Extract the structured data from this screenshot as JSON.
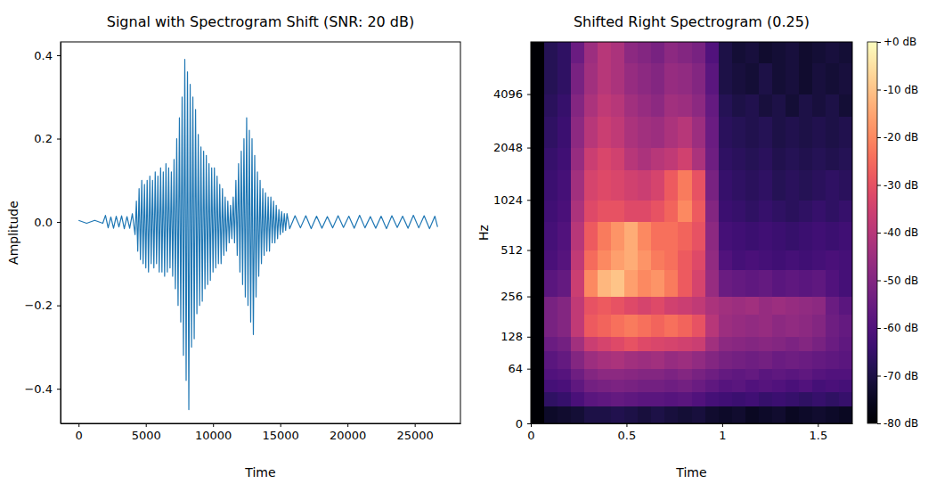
{
  "chart_data": [
    {
      "type": "line",
      "title": "Signal with Spectrogram Shift (SNR: 20 dB)",
      "x_label": "Time",
      "y_label": "Amplitude",
      "color": "#1f77b4",
      "xlim": [
        -1340,
        28400
      ],
      "ylim": [
        -0.483,
        0.432
      ],
      "xticks": [
        0,
        5000,
        10000,
        15000,
        20000,
        25000
      ],
      "yticks": [
        {
          "value": -0.4,
          "label": "−0.4"
        },
        {
          "value": -0.2,
          "label": "−0.2"
        },
        {
          "value": 0,
          "label": "0.0"
        },
        0.2,
        0.4
      ],
      "x": [
        0,
        600,
        1200,
        1800,
        2000,
        2200,
        2400,
        2600,
        2800,
        3000,
        3200,
        3400,
        3600,
        3800,
        4000,
        4200,
        4300,
        4400,
        4500,
        4600,
        4700,
        4800,
        4900,
        5000,
        5100,
        5200,
        5300,
        5400,
        5500,
        5600,
        5700,
        5800,
        5900,
        6000,
        6100,
        6200,
        6300,
        6400,
        6500,
        6600,
        6700,
        6800,
        6900,
        7000,
        7100,
        7200,
        7300,
        7400,
        7500,
        7600,
        7700,
        7800,
        7900,
        8000,
        8100,
        8200,
        8300,
        8400,
        8500,
        8600,
        8700,
        8800,
        8900,
        9000,
        9100,
        9200,
        9300,
        9400,
        9500,
        9600,
        9700,
        9800,
        9900,
        10000,
        10100,
        10200,
        10300,
        10400,
        10500,
        10600,
        10700,
        10800,
        10900,
        11000,
        11100,
        11200,
        11300,
        11400,
        11500,
        11600,
        11700,
        11800,
        11900,
        12000,
        12100,
        12200,
        12300,
        12400,
        12500,
        12600,
        12700,
        12800,
        12900,
        13000,
        13100,
        13200,
        13300,
        13400,
        13500,
        13600,
        13700,
        13800,
        13900,
        14000,
        14100,
        14200,
        14300,
        14400,
        14500,
        14600,
        14700,
        14800,
        14900,
        15000,
        15100,
        15200,
        15300,
        15400,
        15500,
        15700,
        16100,
        16500,
        16900,
        17300,
        17700,
        18100,
        18500,
        18900,
        19300,
        19700,
        20100,
        20500,
        20900,
        21300,
        21700,
        22100,
        22500,
        22900,
        23300,
        23700,
        24100,
        24500,
        24900,
        25300,
        25700,
        26100,
        26500,
        26700
      ],
      "values": [
        0.004,
        -0.003,
        0.004,
        -0.003,
        0.016,
        -0.014,
        0.012,
        -0.015,
        0.014,
        -0.012,
        0.015,
        -0.016,
        0.013,
        -0.015,
        0.02,
        -0.03,
        0.05,
        -0.07,
        0.08,
        -0.09,
        0.1,
        -0.1,
        0.09,
        -0.11,
        0.1,
        -0.12,
        0.11,
        -0.1,
        0.1,
        -0.11,
        0.12,
        -0.1,
        0.11,
        -0.12,
        0.13,
        -0.12,
        0.12,
        -0.13,
        0.14,
        -0.12,
        0.13,
        -0.11,
        0.12,
        -0.13,
        0.15,
        -0.16,
        0.2,
        -0.2,
        0.25,
        -0.24,
        0.3,
        -0.32,
        0.39,
        -0.38,
        0.36,
        -0.45,
        0.33,
        -0.3,
        0.3,
        -0.28,
        0.27,
        -0.22,
        0.21,
        -0.2,
        0.18,
        -0.19,
        0.17,
        -0.16,
        0.16,
        -0.15,
        0.14,
        -0.14,
        0.13,
        -0.12,
        0.13,
        -0.11,
        0.11,
        -0.1,
        0.09,
        -0.1,
        0.08,
        -0.08,
        0.06,
        -0.07,
        0.05,
        -0.05,
        0.04,
        -0.04,
        0.06,
        -0.05,
        0.1,
        -0.08,
        0.14,
        -0.12,
        0.17,
        -0.15,
        0.2,
        -0.18,
        0.25,
        -0.2,
        0.22,
        -0.24,
        0.2,
        -0.27,
        0.16,
        -0.18,
        0.12,
        -0.13,
        0.1,
        -0.1,
        0.08,
        -0.08,
        0.07,
        -0.07,
        0.06,
        -0.07,
        0.06,
        -0.05,
        0.05,
        -0.05,
        0.04,
        -0.04,
        0.03,
        -0.03,
        0.025,
        -0.025,
        0.02,
        -0.02,
        0.02,
        -0.016,
        0.015,
        -0.014,
        0.015,
        -0.016,
        0.014,
        -0.015,
        0.013,
        -0.014,
        0.015,
        -0.013,
        0.014,
        -0.015,
        0.016,
        -0.014,
        0.013,
        -0.015,
        0.014,
        -0.016,
        0.015,
        -0.013,
        0.014,
        -0.015,
        0.016,
        -0.014,
        0.015,
        -0.016,
        0.014,
        -0.012
      ]
    },
    {
      "type": "heatmap",
      "title": "Shifted Right Spectrogram (0.25)",
      "x_label": "Time",
      "y_label": "Hz",
      "log": "y",
      "color": "magma",
      "xlim": [
        0,
        1.68
      ],
      "ylim": [
        0,
        8000
      ],
      "xticks": [
        0,
        0.5,
        1,
        1.5
      ],
      "yticks": [
        0,
        64,
        128,
        256,
        512,
        1024,
        2048,
        4096
      ],
      "x_edges": [
        0,
        0.07,
        0.14,
        0.21,
        0.28,
        0.35,
        0.42,
        0.49,
        0.56,
        0.63,
        0.7,
        0.77,
        0.84,
        0.91,
        0.98,
        1.05,
        1.12,
        1.19,
        1.26,
        1.33,
        1.4,
        1.47,
        1.54,
        1.61,
        1.68
      ],
      "y_edges": [
        0,
        16,
        32,
        48,
        64,
        96,
        128,
        192,
        256,
        384,
        512,
        768,
        1024,
        1536,
        2048,
        3072,
        4096,
        6144,
        8000
      ],
      "cells": [
        [
          -80,
          -74,
          -73,
          -72,
          -70,
          -70,
          -69,
          -70,
          -71,
          -70,
          -71,
          -72,
          -71,
          -73,
          -74,
          -73,
          -75,
          -74,
          -73,
          -75,
          -74,
          -73,
          -74,
          -75
        ],
        [
          -80,
          -66,
          -65,
          -61,
          -58,
          -57,
          -56,
          -57,
          -58,
          -58,
          -59,
          -58,
          -60,
          -62,
          -63,
          -64,
          -63,
          -65,
          -64,
          -65,
          -66,
          -65,
          -66,
          -65
        ],
        [
          -80,
          -62,
          -61,
          -57,
          -53,
          -52,
          -51,
          -52,
          -53,
          -53,
          -54,
          -53,
          -55,
          -57,
          -59,
          -58,
          -60,
          -59,
          -60,
          -61,
          -60,
          -62,
          -61,
          -62
        ],
        [
          -80,
          -60,
          -59,
          -54,
          -50,
          -48,
          -48,
          -49,
          -50,
          -50,
          -51,
          -50,
          -52,
          -54,
          -56,
          -57,
          -56,
          -58,
          -57,
          -58,
          -57,
          -59,
          -60,
          -60
        ],
        [
          -80,
          -58,
          -56,
          -50,
          -45,
          -43,
          -42,
          -44,
          -45,
          -44,
          -46,
          -45,
          -47,
          -50,
          -52,
          -53,
          -54,
          -53,
          -55,
          -54,
          -55,
          -56,
          -57,
          -58
        ],
        [
          -80,
          -55,
          -53,
          -44,
          -36,
          -34,
          -32,
          -30,
          -32,
          -33,
          -34,
          -35,
          -36,
          -44,
          -48,
          -49,
          -50,
          -49,
          -50,
          -51,
          -50,
          -52,
          -55,
          -57
        ],
        [
          -80,
          -52,
          -50,
          -38,
          -28,
          -26,
          -24,
          -22,
          -24,
          -26,
          -24,
          -26,
          -30,
          -40,
          -45,
          -46,
          -47,
          -46,
          -48,
          -47,
          -48,
          -50,
          -54,
          -56
        ],
        [
          -80,
          -52,
          -50,
          -38,
          -30,
          -28,
          -30,
          -32,
          -34,
          -32,
          -35,
          -36,
          -38,
          -42,
          -44,
          -45,
          -44,
          -46,
          -45,
          -46,
          -47,
          -48,
          -55,
          -58
        ],
        [
          -80,
          -58,
          -56,
          -36,
          -20,
          -12,
          -10,
          -16,
          -20,
          -18,
          -22,
          -28,
          -34,
          -46,
          -55,
          -56,
          -57,
          -56,
          -58,
          -57,
          -58,
          -57,
          -60,
          -62
        ],
        [
          -80,
          -61,
          -59,
          -38,
          -25,
          -20,
          -16,
          -14,
          -18,
          -22,
          -24,
          -28,
          -32,
          -47,
          -60,
          -62,
          -61,
          -62,
          -63,
          -62,
          -63,
          -62,
          -61,
          -62
        ],
        [
          -80,
          -62,
          -60,
          -40,
          -28,
          -22,
          -18,
          -14,
          -20,
          -24,
          -24,
          -26,
          -30,
          -48,
          -62,
          -63,
          -64,
          -63,
          -64,
          -65,
          -64,
          -63,
          -64,
          -63
        ],
        [
          -80,
          -63,
          -61,
          -42,
          -32,
          -30,
          -30,
          -32,
          -32,
          -30,
          -26,
          -20,
          -28,
          -50,
          -64,
          -65,
          -66,
          -65,
          -66,
          -67,
          -66,
          -65,
          -66,
          -65
        ],
        [
          -80,
          -64,
          -62,
          -44,
          -34,
          -32,
          -33,
          -35,
          -36,
          -34,
          -28,
          -22,
          -30,
          -52,
          -65,
          -66,
          -67,
          -66,
          -68,
          -67,
          -68,
          -67,
          -66,
          -67
        ],
        [
          -80,
          -65,
          -63,
          -46,
          -36,
          -33,
          -35,
          -40,
          -42,
          -40,
          -38,
          -35,
          -42,
          -54,
          -66,
          -67,
          -68,
          -67,
          -69,
          -68,
          -69,
          -68,
          -69,
          -68
        ],
        [
          -80,
          -66,
          -64,
          -48,
          -40,
          -36,
          -38,
          -42,
          -44,
          -45,
          -42,
          -40,
          -45,
          -55,
          -67,
          -68,
          -69,
          -68,
          -70,
          -69,
          -70,
          -69,
          -70,
          -69
        ],
        [
          -80,
          -67,
          -65,
          -50,
          -42,
          -38,
          -40,
          -44,
          -46,
          -48,
          -44,
          -45,
          -48,
          -56,
          -68,
          -70,
          -69,
          -71,
          -70,
          -72,
          -70,
          -71,
          -70,
          -72
        ],
        [
          -80,
          -68,
          -66,
          -52,
          -44,
          -40,
          -42,
          -46,
          -48,
          -50,
          -46,
          -47,
          -50,
          -58,
          -70,
          -71,
          -72,
          -70,
          -72,
          -71,
          -73,
          -71,
          -72,
          -71
        ],
        [
          -80,
          -68,
          -66,
          -55,
          -45,
          -40,
          -42,
          -48,
          -50,
          -52,
          -48,
          -50,
          -52,
          -60,
          -70,
          -72,
          -71,
          -73,
          -72,
          -71,
          -73,
          -72,
          -71,
          -72
        ]
      ],
      "clim": [
        -80,
        0
      ],
      "cticks": [
        {
          "value": 0,
          "label": "+0 dB"
        },
        {
          "value": -10,
          "label": "-10 dB"
        },
        {
          "value": -20,
          "label": "-20 dB"
        },
        {
          "value": -30,
          "label": "-30 dB"
        },
        {
          "value": -40,
          "label": "-40 dB"
        },
        {
          "value": -50,
          "label": "-50 dB"
        },
        {
          "value": -60,
          "label": "-60 dB"
        },
        {
          "value": -70,
          "label": "-70 dB"
        },
        {
          "value": -80,
          "label": "-80 dB"
        }
      ]
    }
  ]
}
